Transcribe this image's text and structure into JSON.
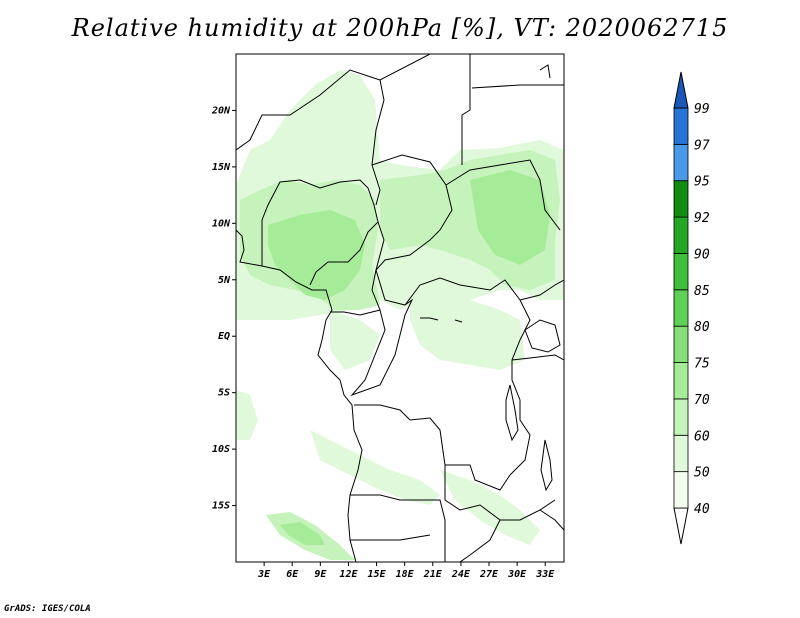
{
  "title": "Relative humidity at 200hPa [%], VT: 2020062715",
  "credit": "GrADS: IGES/COLA",
  "map": {
    "lon_range": [
      0,
      35
    ],
    "lat_range": [
      -20,
      25
    ],
    "lat_ticks": [
      {
        "value": 20,
        "label": "20N"
      },
      {
        "value": 15,
        "label": "15N"
      },
      {
        "value": 10,
        "label": "10N"
      },
      {
        "value": 5,
        "label": "5N"
      },
      {
        "value": 0,
        "label": "EQ"
      },
      {
        "value": -5,
        "label": "5S"
      },
      {
        "value": -10,
        "label": "10S"
      },
      {
        "value": -15,
        "label": "15S"
      }
    ],
    "lon_ticks": [
      {
        "value": 3,
        "label": "3E"
      },
      {
        "value": 6,
        "label": "6E"
      },
      {
        "value": 9,
        "label": "9E"
      },
      {
        "value": 12,
        "label": "12E"
      },
      {
        "value": 15,
        "label": "15E"
      },
      {
        "value": 18,
        "label": "18E"
      },
      {
        "value": 21,
        "label": "21E"
      },
      {
        "value": 24,
        "label": "24E"
      },
      {
        "value": 27,
        "label": "27E"
      },
      {
        "value": 30,
        "label": "30E"
      },
      {
        "value": 33,
        "label": "33E"
      }
    ]
  },
  "colorbar": {
    "levels": [
      {
        "label": "40",
        "color": "#f2fdf0"
      },
      {
        "label": "50",
        "color": "#e0f9da"
      },
      {
        "label": "60",
        "color": "#c6f3bb"
      },
      {
        "label": "70",
        "color": "#a6ec98"
      },
      {
        "label": "75",
        "color": "#85e078"
      },
      {
        "label": "80",
        "color": "#5fd156"
      },
      {
        "label": "85",
        "color": "#3fbf3a"
      },
      {
        "label": "90",
        "color": "#24a824"
      },
      {
        "label": "92",
        "color": "#128c12"
      },
      {
        "label": "95",
        "color": "#4a98e8"
      },
      {
        "label": "97",
        "color": "#2873d6"
      },
      {
        "label": "99",
        "color": "#1b57b8"
      }
    ],
    "below_color": "#ffffff",
    "above_color": "#1b57b8"
  }
}
